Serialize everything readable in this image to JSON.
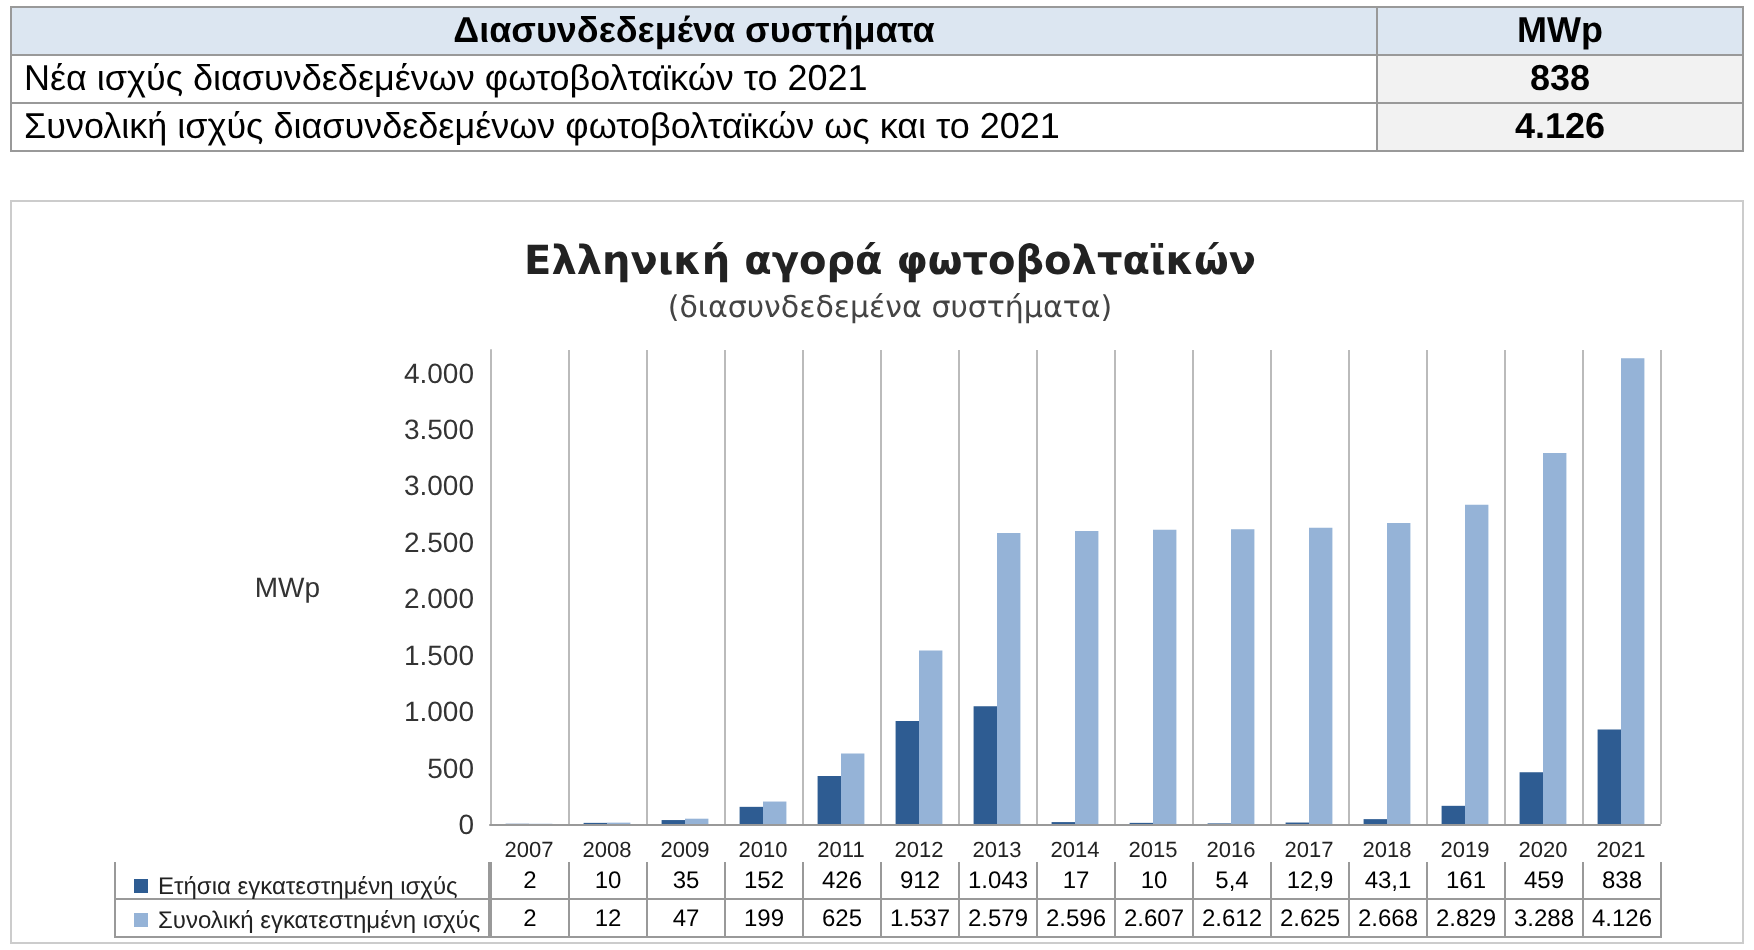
{
  "chart_data": {
    "type": "bar",
    "title": "Ελληνική αγορά φωτοβολταϊκών",
    "subtitle": "(διασυνδεδεμένα συστήματα)",
    "ylabel": "MWp",
    "annotations": [
      "Διασυνδεδεμένα συστήματα",
      "MWp",
      "Νέα ισχύς διασυνδεδεμένων φωτοβολταϊκών το 2021",
      "838",
      "Συνολική ισχύς διασυνδεδεμένων φωτοβολταϊκών ως και το 2021",
      "4.126"
    ],
    "categories": [
      "2007",
      "2008",
      "2009",
      "2010",
      "2011",
      "2012",
      "2013",
      "2014",
      "2015",
      "2016",
      "2017",
      "2018",
      "2019",
      "2020",
      "2021"
    ],
    "series": [
      {
        "name": "Ετήσια εγκατεστημένη ισχύς",
        "color": "#2e5c92",
        "values": [
          2,
          10,
          35,
          152,
          426,
          912,
          1043,
          17,
          10,
          5.4,
          12.9,
          43.1,
          161,
          459,
          838
        ],
        "value_labels": [
          "2",
          "10",
          "35",
          "152",
          "426",
          "912",
          "1.043",
          "17",
          "10",
          "5,4",
          "12,9",
          "43,1",
          "161",
          "459",
          "838"
        ]
      },
      {
        "name": "Συνολική εγκατεστημένη ισχύς",
        "color": "#95b3d7",
        "values": [
          2,
          12,
          47,
          199,
          625,
          1537,
          2579,
          2596,
          2607,
          2612,
          2625,
          2668,
          2829,
          3288,
          4126
        ],
        "value_labels": [
          "2",
          "12",
          "47",
          "199",
          "625",
          "1.537",
          "2.579",
          "2.596",
          "2.607",
          "2.612",
          "2.625",
          "2.668",
          "2.829",
          "3.288",
          "4.126"
        ]
      }
    ],
    "ylim": [
      0,
      4200
    ],
    "yticks": [
      {
        "value": 0,
        "label": "0"
      },
      {
        "value": 500,
        "label": "500"
      },
      {
        "value": 1000,
        "label": "1.000"
      },
      {
        "value": 1500,
        "label": "1.500"
      },
      {
        "value": 2000,
        "label": "2.000"
      },
      {
        "value": 2500,
        "label": "2.500"
      },
      {
        "value": 3000,
        "label": "3.000"
      },
      {
        "value": 3500,
        "label": "3.500"
      },
      {
        "value": 4000,
        "label": "4.000"
      }
    ],
    "grid": "x",
    "legend": "bottom"
  }
}
